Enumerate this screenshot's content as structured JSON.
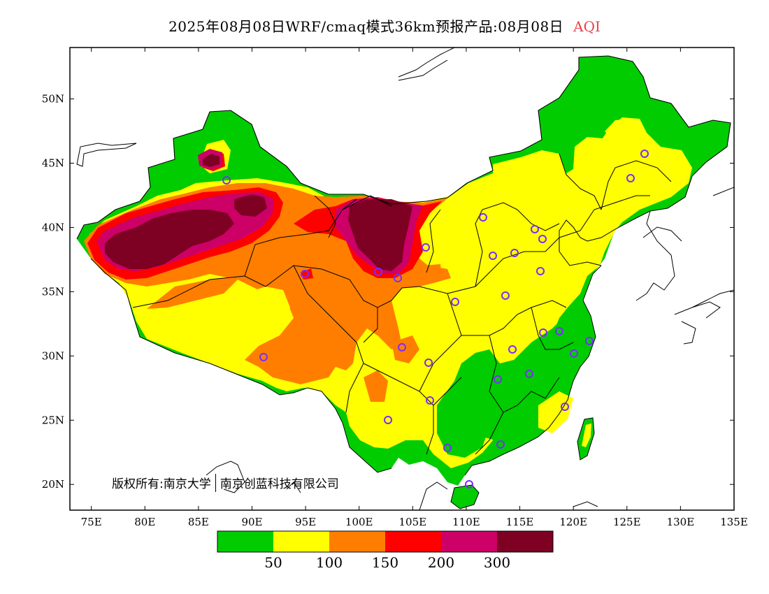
{
  "title": {
    "main": "2025年08月08日WRF/cmaq模式36km预报产品:08月08日",
    "variable": "AQI"
  },
  "credit": {
    "left": "版权所有:南京大学",
    "right": "南京创蓝科技有限公司"
  },
  "axes": {
    "lon_ticks": [
      "75E",
      "80E",
      "85E",
      "90E",
      "95E",
      "100E",
      "105E",
      "110E",
      "115E",
      "120E",
      "125E",
      "130E",
      "135E"
    ],
    "lat_ticks": [
      "20N",
      "25N",
      "30N",
      "35N",
      "40N",
      "45N",
      "50N"
    ]
  },
  "legend": {
    "colors": [
      "#00cc00",
      "#ffff00",
      "#ff7e00",
      "#ff0000",
      "#cc0066",
      "#7e0023"
    ],
    "labels": [
      "50",
      "100",
      "150",
      "200",
      "300"
    ]
  },
  "map": {
    "lon_range": [
      73,
      135
    ],
    "lat_range": [
      18,
      54
    ],
    "stations_count": 31
  }
}
